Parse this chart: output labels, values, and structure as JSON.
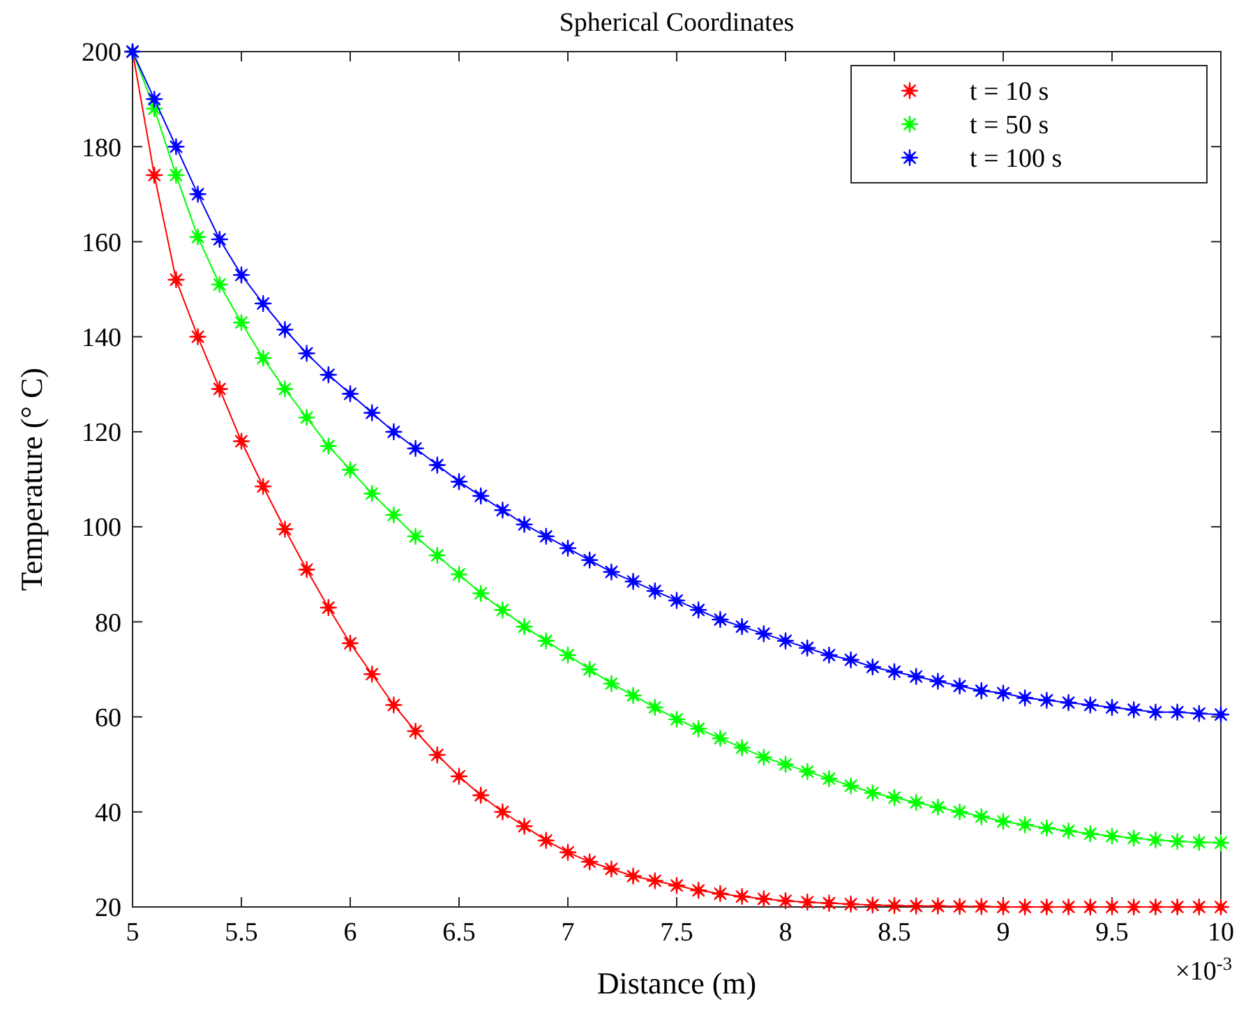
{
  "chart_data": {
    "type": "line",
    "title": "Spherical Coordinates",
    "xlabel": "Distance (m)",
    "ylabel": "Temperature (° C)",
    "x": [
      5,
      5.1,
      5.2,
      5.3,
      5.4,
      5.5,
      5.6,
      5.7,
      5.8,
      5.9,
      6,
      6.1,
      6.2,
      6.3,
      6.4,
      6.5,
      6.6,
      6.7,
      6.8,
      6.9,
      7,
      7.1,
      7.2,
      7.3,
      7.4,
      7.5,
      7.6,
      7.7,
      7.8,
      7.9,
      8,
      8.1,
      8.2,
      8.3,
      8.4,
      8.5,
      8.6,
      8.7,
      8.8,
      8.9,
      9,
      9.1,
      9.2,
      9.3,
      9.4,
      9.5,
      9.6,
      9.7,
      9.8,
      9.9,
      10
    ],
    "series": [
      {
        "name": "t = 10 s",
        "color": "#ff0000",
        "values": [
          200,
          174,
          152,
          140,
          129,
          118,
          108.5,
          99.5,
          91,
          83,
          75.5,
          69,
          62.5,
          57,
          52,
          47.5,
          43.5,
          40,
          37,
          34,
          31.5,
          29.5,
          28,
          26.5,
          25.5,
          24.5,
          23.5,
          22.8,
          22.2,
          21.7,
          21.3,
          21,
          20.8,
          20.6,
          20.4,
          20.3,
          20.2,
          20.2,
          20.1,
          20.1,
          20,
          20,
          20,
          20,
          20,
          20,
          20,
          20,
          20,
          20,
          20
        ]
      },
      {
        "name": "t = 50 s",
        "color": "#00ff00",
        "values": [
          200,
          188,
          174,
          161,
          151,
          143,
          135.5,
          129,
          123,
          117,
          112,
          107,
          102.5,
          98,
          94,
          90,
          86,
          82.5,
          79,
          76,
          73,
          70,
          67,
          64.5,
          62,
          59.5,
          57.5,
          55.5,
          53.5,
          51.5,
          50,
          48.5,
          47,
          45.5,
          44,
          43,
          42,
          41,
          40,
          39,
          38,
          37.3,
          36.6,
          36,
          35.4,
          34.9,
          34.5,
          34.1,
          33.8,
          33.6,
          33.5
        ]
      },
      {
        "name": "t = 100 s",
        "color": "#0000ff",
        "values": [
          200,
          190,
          180,
          170,
          160.5,
          153,
          147,
          141.5,
          136.5,
          132,
          128,
          124,
          120,
          116.5,
          113,
          109.5,
          106.5,
          103.5,
          100.5,
          98,
          95.5,
          93,
          90.5,
          88.5,
          86.5,
          84.5,
          82.5,
          80.5,
          79,
          77.5,
          76,
          74.5,
          73,
          72,
          70.5,
          69.5,
          68.5,
          67.5,
          66.5,
          65.5,
          65,
          64,
          63.5,
          63,
          62.5,
          62,
          61.5,
          61,
          61,
          60.7,
          60.5
        ]
      }
    ],
    "xlim": [
      5,
      10
    ],
    "xticks": [
      5,
      5.5,
      6,
      6.5,
      7,
      7.5,
      8,
      8.5,
      9,
      9.5,
      10
    ],
    "ylim": [
      20,
      200
    ],
    "yticks": [
      20,
      40,
      60,
      80,
      100,
      120,
      140,
      160,
      180,
      200
    ],
    "annotations": [
      "×10$^{-3}$"
    ],
    "marker": "star",
    "line_style": "solid",
    "legend": "top right",
    "grid": false
  }
}
